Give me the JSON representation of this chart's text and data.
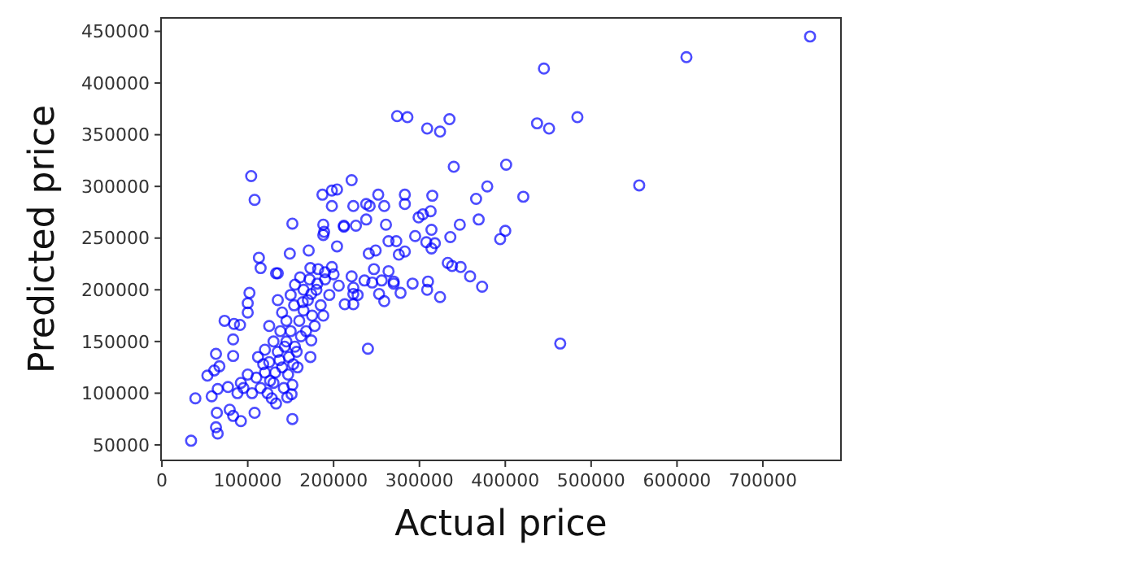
{
  "chart_data": {
    "type": "scatter",
    "xlabel": "Actual price",
    "ylabel": "Predicted price",
    "color": "#0000ff",
    "marker": "circle",
    "xlim": [
      -1000,
      791000
    ],
    "ylim": [
      35000,
      463000
    ],
    "xticks": [
      0,
      100000,
      200000,
      300000,
      400000,
      500000,
      600000,
      700000
    ],
    "yticks": [
      50000,
      100000,
      150000,
      200000,
      250000,
      300000,
      350000,
      400000,
      450000
    ],
    "x": [
      755000,
      611000,
      445000,
      274000,
      286000,
      335000,
      309000,
      324000,
      437000,
      451000,
      484000,
      340000,
      401000,
      556000,
      421000,
      379000,
      366000,
      369000,
      347000,
      336000,
      400000,
      394000,
      464000,
      373000,
      359000,
      348000,
      338000,
      333000,
      324000,
      309000,
      310000,
      292000,
      314000,
      315000,
      313000,
      304000,
      299000,
      295000,
      308000,
      318000,
      314000,
      283000,
      283000,
      283000,
      276000,
      273000,
      264000,
      261000,
      259000,
      252000,
      221000,
      204000,
      198000,
      187000,
      198000,
      223000,
      226000,
      238000,
      242000,
      238000,
      212000,
      188000,
      188000,
      152000,
      104000,
      108000,
      149000,
      113000,
      115000,
      133000,
      102000,
      100000,
      100000,
      73000,
      91000,
      84000,
      83000,
      83000,
      63000,
      61000,
      67000,
      53000,
      39000,
      34000,
      58000,
      65000,
      77000,
      64000,
      63000,
      65000,
      79000,
      83000,
      92000,
      108000,
      152000,
      133000,
      146000,
      152000,
      151000,
      240000,
      173000,
      174000,
      135000,
      171000,
      223000,
      223000,
      228000,
      259000,
      253000,
      245000,
      270000,
      278000,
      223000,
      213000,
      206000,
      173000,
      161000,
      221000,
      236000,
      256000,
      247000,
      241000,
      249000,
      264000,
      270000,
      204000,
      212000,
      189000,
      198000,
      190000,
      181000,
      174000,
      164000,
      154000,
      120000,
      125000,
      130000,
      135000,
      140000,
      145000,
      150000,
      155000,
      160000,
      165000,
      170000,
      175000,
      180000,
      185000,
      190000,
      195000,
      200000,
      130000,
      115000,
      110000,
      105000,
      118000,
      128000,
      138000,
      142000,
      148000,
      158000,
      162000,
      168000,
      178000,
      182000,
      120000,
      112000,
      100000,
      95000,
      88000,
      92000,
      140000,
      150000,
      155000,
      165000,
      172000,
      188000,
      125000,
      135000,
      145000,
      132000,
      126000,
      137000,
      143000,
      153000,
      157000,
      147000,
      123000
    ],
    "values": [
      445000,
      425000,
      414000,
      368000,
      367000,
      365000,
      356000,
      353000,
      361000,
      356000,
      367000,
      319000,
      321000,
      301000,
      290000,
      300000,
      288000,
      268000,
      263000,
      251000,
      257000,
      249000,
      148000,
      203000,
      213000,
      222000,
      223000,
      226000,
      193000,
      200000,
      208000,
      206000,
      258000,
      291000,
      276000,
      273000,
      270000,
      252000,
      246000,
      245000,
      240000,
      292000,
      283000,
      237000,
      234000,
      247000,
      247000,
      263000,
      281000,
      292000,
      306000,
      297000,
      296000,
      292000,
      281000,
      281000,
      262000,
      283000,
      281000,
      268000,
      261000,
      263000,
      253000,
      264000,
      310000,
      287000,
      235000,
      231000,
      221000,
      216000,
      197000,
      187000,
      178000,
      170000,
      166000,
      167000,
      152000,
      136000,
      138000,
      122000,
      126000,
      117000,
      95000,
      54000,
      97000,
      104000,
      106000,
      81000,
      67000,
      61000,
      84000,
      78000,
      73000,
      81000,
      75000,
      90000,
      96000,
      108000,
      99000,
      143000,
      135000,
      151000,
      216000,
      238000,
      202000,
      186000,
      195000,
      189000,
      196000,
      207000,
      206000,
      197000,
      196000,
      186000,
      204000,
      221000,
      212000,
      213000,
      209000,
      209000,
      220000,
      235000,
      238000,
      218000,
      208000,
      242000,
      262000,
      256000,
      222000,
      217000,
      206000,
      196000,
      188000,
      185000,
      120000,
      130000,
      110000,
      140000,
      125000,
      150000,
      160000,
      145000,
      170000,
      180000,
      190000,
      175000,
      200000,
      185000,
      210000,
      195000,
      215000,
      150000,
      105000,
      115000,
      100000,
      128000,
      95000,
      160000,
      105000,
      135000,
      125000,
      155000,
      160000,
      165000,
      220000,
      142000,
      135000,
      118000,
      105000,
      100000,
      110000,
      178000,
      195000,
      205000,
      200000,
      210000,
      175000,
      165000,
      190000,
      170000,
      120000,
      112000,
      132000,
      145000,
      128000,
      140000,
      118000,
      100000
    ]
  }
}
